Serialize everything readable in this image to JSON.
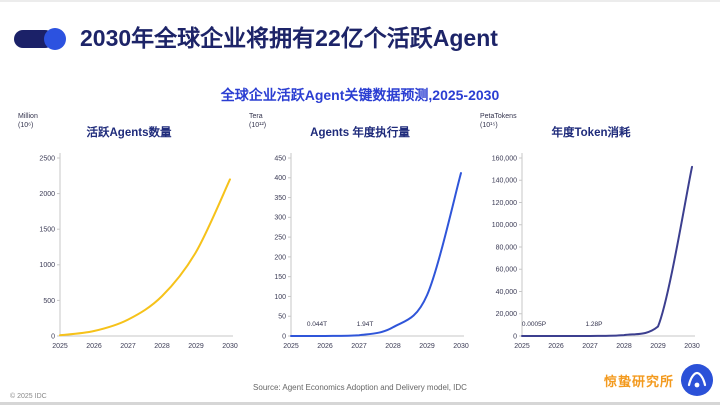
{
  "slide": {
    "title": "2030年全球企业将拥有22亿个活跃Agent",
    "subtitle": "全球企业活跃Agent关键数据预测,2025-2030",
    "source": "Source: Agent Economics Adoption and Delivery model, IDC",
    "copyright": "© 2025 IDC",
    "watermark": "惊蛰研究所"
  },
  "colors": {
    "title_navy": "#1d2468",
    "subtitle_blue": "#2b3ed2",
    "logo_navy": "#1b2168",
    "logo_blue": "#2c52e0",
    "watermark_orange": "#f39a1e",
    "axis_gray": "#c7c7c7"
  },
  "chart_data": [
    {
      "type": "line",
      "title": "活跃Agents数量",
      "unit": "Million",
      "unit_sub": "(10⁶)",
      "categories": [
        "2025",
        "2026",
        "2027",
        "2028",
        "2029",
        "2030"
      ],
      "values": [
        10,
        70,
        230,
        560,
        1180,
        2200
      ],
      "ylim": [
        0,
        2500
      ],
      "ytick_labels": [
        "0",
        "500",
        "1000",
        "1500",
        "2000",
        "2500"
      ],
      "color": "#f6c21a",
      "grid": false,
      "legend": "none",
      "annotations": []
    },
    {
      "type": "line",
      "title": "Agents 年度执行量",
      "unit": "Tera",
      "unit_sub": "(10¹²)",
      "categories": [
        "2025",
        "2026",
        "2027",
        "2028",
        "2029",
        "2030"
      ],
      "values": [
        0.005,
        0.044,
        1.94,
        22,
        103,
        412
      ],
      "ylim": [
        0,
        450
      ],
      "ytick_labels": [
        "0",
        "50",
        "100",
        "150",
        "200",
        "250",
        "300",
        "350",
        "400",
        "450"
      ],
      "color": "#2f55d9",
      "grid": false,
      "legend": "none",
      "annotations": [
        {
          "text": "0.044T",
          "x": 1,
          "dx": -8
        },
        {
          "text": "1.94T",
          "x": 2,
          "dx": 6
        }
      ]
    },
    {
      "type": "line",
      "title": "年度Token消耗",
      "unit": "PetaTokens",
      "unit_sub": "(10¹⁵)",
      "categories": [
        "2025",
        "2026",
        "2027",
        "2028",
        "2029",
        "2030"
      ],
      "values": [
        0.0005,
        0.05,
        1.28,
        800,
        8500,
        152000
      ],
      "ylim": [
        0,
        160000
      ],
      "ytick_labels": [
        "0",
        "20,000",
        "40,000",
        "60,000",
        "80,000",
        "100,000",
        "120,000",
        "140,000",
        "160,000"
      ],
      "color": "#3c3f8f",
      "grid": false,
      "legend": "none",
      "annotations": [
        {
          "text": "0.0005P",
          "x": 0,
          "dx": 12
        },
        {
          "text": "1.28P",
          "x": 2,
          "dx": 4
        }
      ]
    }
  ]
}
